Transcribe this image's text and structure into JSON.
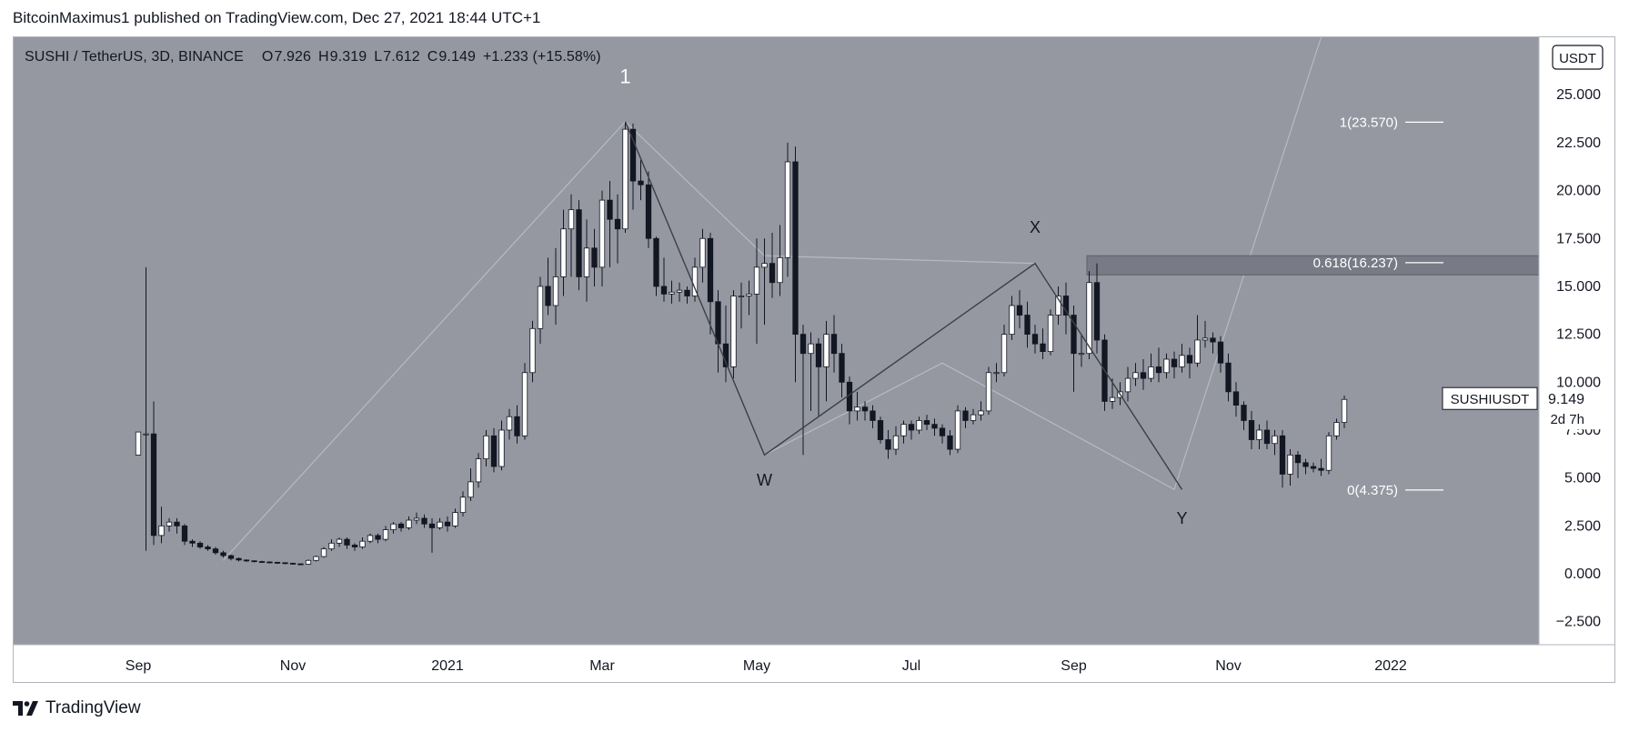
{
  "header": {
    "published_text": "BitcoinMaximus1 published on TradingView.com, Dec 27, 2021 18:44 UTC+1"
  },
  "legend": {
    "symbol": "SUSHI / TetherUS, 3D, BINANCE",
    "open_label": "O",
    "open": "7.926",
    "high_label": "H",
    "high": "9.319",
    "low_label": "L",
    "low": "7.612",
    "close_label": "C",
    "close": "9.149",
    "change": "+1.233 (+15.58%)"
  },
  "footer": {
    "brand": "TradingView",
    "logo_icon": "tradingview-logo-icon"
  },
  "colors": {
    "plot_bg": "#9598a1",
    "up_candle": "#ffffff",
    "down_candle": "#131722",
    "wave_line": "#3c3f47",
    "channel_line": "#b7bac1",
    "fib_box": "#787b86"
  },
  "chart_data": {
    "type": "candlestick",
    "currency_badge": "USDT",
    "ylim": [
      -3.7,
      28.0
    ],
    "y_ticks": [
      -2.5,
      0,
      2.5,
      5,
      7.5,
      10,
      12.5,
      15,
      17.5,
      20,
      22.5,
      25
    ],
    "y_tick_labels": [
      "−2.500",
      "0.000",
      "2.500",
      "5.000",
      "7.500",
      "10.000",
      "12.500",
      "15.000",
      "17.500",
      "20.000",
      "22.500",
      "25.000"
    ],
    "x_ticks": [
      {
        "label": "Sep",
        "i": 0
      },
      {
        "label": "Nov",
        "i": 20
      },
      {
        "label": "2021",
        "i": 40
      },
      {
        "label": "Mar",
        "i": 60
      },
      {
        "label": "May",
        "i": 80
      },
      {
        "label": "Jul",
        "i": 100
      },
      {
        "label": "Sep",
        "i": 121
      },
      {
        "label": "Nov",
        "i": 141
      },
      {
        "label": "2022",
        "i": 162
      }
    ],
    "last_price_label": {
      "symbol": "SUSHIUSDT",
      "price": "9.149",
      "countdown": "2d 7h"
    },
    "last_price": 9.149,
    "candles": [
      [
        6.2,
        7.4,
        7.4,
        6.2
      ],
      [
        7.3,
        7.3,
        16.0,
        1.2
      ],
      [
        7.3,
        2.0,
        9.0,
        1.5
      ],
      [
        2.0,
        2.5,
        3.5,
        1.6
      ],
      [
        2.5,
        2.7,
        2.9,
        2.2
      ],
      [
        2.7,
        2.5,
        2.9,
        2.1
      ],
      [
        2.5,
        1.7,
        2.6,
        1.5
      ],
      [
        1.7,
        1.6,
        1.8,
        1.4
      ],
      [
        1.6,
        1.4,
        1.7,
        1.3
      ],
      [
        1.4,
        1.3,
        1.5,
        1.2
      ],
      [
        1.3,
        1.1,
        1.4,
        1.0
      ],
      [
        1.1,
        0.95,
        1.2,
        0.85
      ],
      [
        0.95,
        0.8,
        1.0,
        0.7
      ],
      [
        0.8,
        0.72,
        0.85,
        0.65
      ],
      [
        0.72,
        0.68,
        0.75,
        0.62
      ],
      [
        0.68,
        0.64,
        0.7,
        0.6
      ],
      [
        0.64,
        0.62,
        0.68,
        0.58
      ],
      [
        0.62,
        0.6,
        0.65,
        0.55
      ],
      [
        0.6,
        0.58,
        0.63,
        0.52
      ],
      [
        0.58,
        0.55,
        0.6,
        0.5
      ],
      [
        0.55,
        0.52,
        0.58,
        0.48
      ],
      [
        0.52,
        0.5,
        0.55,
        0.45
      ],
      [
        0.5,
        0.7,
        0.75,
        0.47
      ],
      [
        0.7,
        0.9,
        0.95,
        0.65
      ],
      [
        0.9,
        1.3,
        1.4,
        0.85
      ],
      [
        1.3,
        1.6,
        1.8,
        1.2
      ],
      [
        1.6,
        1.8,
        1.9,
        1.4
      ],
      [
        1.8,
        1.5,
        1.9,
        1.3
      ],
      [
        1.5,
        1.4,
        1.6,
        1.2
      ],
      [
        1.4,
        1.7,
        1.9,
        1.3
      ],
      [
        1.7,
        2.0,
        2.1,
        1.6
      ],
      [
        2.0,
        1.8,
        2.1,
        1.6
      ],
      [
        1.8,
        2.3,
        2.5,
        1.7
      ],
      [
        2.3,
        2.6,
        2.7,
        2.1
      ],
      [
        2.6,
        2.4,
        2.7,
        2.2
      ],
      [
        2.4,
        2.8,
        3.0,
        2.3
      ],
      [
        2.8,
        2.9,
        3.2,
        2.6
      ],
      [
        2.9,
        2.6,
        3.1,
        2.4
      ],
      [
        2.6,
        2.4,
        2.9,
        1.1
      ],
      [
        2.4,
        2.7,
        2.9,
        2.3
      ],
      [
        2.7,
        2.5,
        3.0,
        2.2
      ],
      [
        2.5,
        3.2,
        3.4,
        2.4
      ],
      [
        3.2,
        4.0,
        4.3,
        3.0
      ],
      [
        4.0,
        4.8,
        5.5,
        3.8
      ],
      [
        4.8,
        6.0,
        6.3,
        4.5
      ],
      [
        6.0,
        7.2,
        7.5,
        5.6
      ],
      [
        7.2,
        5.6,
        7.6,
        5.3
      ],
      [
        5.6,
        7.5,
        8.0,
        5.4
      ],
      [
        7.5,
        8.2,
        8.6,
        7.0
      ],
      [
        8.2,
        7.2,
        8.8,
        6.8
      ],
      [
        7.2,
        10.5,
        11.0,
        7.0
      ],
      [
        10.5,
        12.8,
        13.2,
        10.0
      ],
      [
        12.8,
        15.0,
        15.5,
        12.0
      ],
      [
        15.0,
        14.0,
        16.5,
        13.5
      ],
      [
        14.0,
        15.5,
        17.0,
        13.0
      ],
      [
        15.5,
        18.0,
        19.0,
        14.5
      ],
      [
        18.0,
        19.0,
        19.8,
        15.5
      ],
      [
        19.0,
        15.5,
        19.5,
        14.8
      ],
      [
        15.5,
        17.0,
        18.5,
        14.2
      ],
      [
        17.0,
        16.0,
        18.0,
        15.0
      ],
      [
        16.0,
        19.5,
        20.0,
        15.0
      ],
      [
        19.5,
        18.5,
        20.5,
        16.0
      ],
      [
        18.5,
        18.0,
        19.8,
        16.2
      ],
      [
        18.0,
        23.2,
        23.6,
        17.8
      ],
      [
        23.2,
        20.5,
        23.5,
        19.0
      ],
      [
        20.5,
        20.3,
        21.6,
        19.5
      ],
      [
        20.3,
        17.5,
        21.0,
        17.0
      ],
      [
        17.5,
        15.0,
        17.6,
        14.5
      ],
      [
        15.0,
        14.6,
        16.5,
        14.2
      ],
      [
        14.6,
        14.7,
        15.3,
        14.1
      ],
      [
        14.7,
        14.8,
        15.2,
        14.2
      ],
      [
        14.8,
        14.5,
        15.0,
        14.1
      ],
      [
        14.5,
        16.0,
        16.5,
        14.2
      ],
      [
        16.0,
        17.5,
        18.0,
        15.2
      ],
      [
        17.5,
        14.2,
        17.8,
        12.5
      ],
      [
        14.2,
        12.0,
        14.8,
        10.5
      ],
      [
        12.0,
        10.8,
        14.0,
        10.0
      ],
      [
        10.8,
        14.5,
        14.8,
        10.2
      ],
      [
        14.5,
        14.5,
        15.2,
        12.8
      ],
      [
        14.5,
        14.6,
        15.3,
        13.5
      ],
      [
        14.6,
        16.0,
        17.5,
        12.0
      ],
      [
        16.0,
        16.2,
        17.5,
        13.0
      ],
      [
        16.2,
        15.2,
        17.8,
        14.4
      ],
      [
        15.2,
        16.5,
        18.2,
        14.5
      ],
      [
        16.5,
        21.5,
        22.5,
        15.5
      ],
      [
        21.5,
        12.5,
        22.3,
        10.0
      ],
      [
        12.5,
        11.5,
        13.0,
        6.2
      ],
      [
        11.5,
        12.0,
        12.6,
        8.5
      ],
      [
        12.0,
        10.8,
        12.3,
        8.2
      ],
      [
        10.8,
        12.5,
        13.2,
        9.0
      ],
      [
        12.5,
        11.5,
        13.5,
        10.5
      ],
      [
        11.5,
        10.0,
        12.0,
        9.2
      ],
      [
        10.0,
        8.5,
        10.3,
        7.8
      ],
      [
        8.5,
        8.7,
        9.5,
        8.0
      ],
      [
        8.7,
        8.5,
        9.0,
        8.0
      ],
      [
        8.5,
        8.0,
        8.8,
        7.6
      ],
      [
        8.0,
        7.0,
        8.2,
        6.8
      ],
      [
        7.0,
        6.5,
        7.5,
        6.0
      ],
      [
        6.5,
        7.2,
        7.7,
        6.2
      ],
      [
        7.2,
        7.8,
        8.0,
        6.8
      ],
      [
        7.8,
        7.5,
        8.0,
        7.0
      ],
      [
        7.5,
        8.0,
        8.2,
        7.3
      ],
      [
        8.0,
        7.8,
        8.3,
        7.5
      ],
      [
        7.8,
        7.6,
        8.1,
        7.2
      ],
      [
        7.6,
        7.2,
        7.8,
        6.8
      ],
      [
        7.2,
        6.5,
        7.5,
        6.2
      ],
      [
        6.5,
        8.5,
        8.8,
        6.3
      ],
      [
        8.5,
        8.0,
        8.7,
        7.6
      ],
      [
        8.0,
        8.3,
        8.6,
        7.8
      ],
      [
        8.3,
        8.5,
        9.0,
        8.0
      ],
      [
        8.5,
        10.5,
        10.8,
        8.3
      ],
      [
        10.5,
        10.5,
        11.0,
        10.0
      ],
      [
        10.5,
        12.5,
        13.0,
        10.3
      ],
      [
        12.5,
        14.0,
        14.5,
        12.2
      ],
      [
        14.0,
        13.5,
        14.8,
        12.8
      ],
      [
        13.5,
        12.5,
        14.2,
        11.8
      ],
      [
        12.5,
        12.0,
        13.0,
        11.5
      ],
      [
        12.0,
        11.6,
        12.8,
        11.2
      ],
      [
        11.6,
        13.5,
        13.8,
        11.4
      ],
      [
        13.5,
        14.5,
        15.0,
        13.0
      ],
      [
        14.5,
        13.5,
        15.2,
        12.5
      ],
      [
        13.5,
        11.5,
        14.0,
        9.5
      ],
      [
        11.5,
        11.5,
        12.5,
        10.8
      ],
      [
        11.5,
        15.2,
        15.8,
        11.2
      ],
      [
        15.2,
        12.2,
        16.2,
        11.5
      ],
      [
        12.2,
        9.0,
        12.5,
        8.5
      ],
      [
        9.0,
        9.2,
        10.2,
        8.6
      ],
      [
        9.2,
        9.5,
        10.0,
        8.8
      ],
      [
        9.5,
        10.2,
        10.8,
        9.0
      ],
      [
        10.2,
        10.5,
        11.0,
        9.8
      ],
      [
        10.5,
        10.2,
        11.2,
        9.6
      ],
      [
        10.2,
        10.8,
        11.5,
        10.0
      ],
      [
        10.8,
        10.5,
        11.8,
        10.0
      ],
      [
        10.5,
        11.2,
        11.5,
        10.2
      ],
      [
        11.2,
        10.8,
        11.6,
        10.2
      ],
      [
        10.8,
        11.4,
        12.0,
        10.5
      ],
      [
        11.4,
        11.0,
        11.8,
        10.2
      ],
      [
        11.0,
        12.2,
        13.5,
        10.8
      ],
      [
        12.2,
        12.3,
        13.2,
        11.8
      ],
      [
        12.3,
        12.1,
        12.6,
        11.5
      ],
      [
        12.1,
        11.0,
        12.4,
        10.5
      ],
      [
        11.0,
        9.5,
        11.5,
        9.0
      ],
      [
        9.5,
        8.8,
        10.0,
        8.2
      ],
      [
        8.8,
        8.0,
        9.0,
        7.5
      ],
      [
        8.0,
        7.0,
        8.5,
        6.5
      ],
      [
        7.0,
        7.5,
        7.8,
        6.5
      ],
      [
        7.5,
        6.8,
        8.0,
        6.5
      ],
      [
        6.8,
        7.2,
        7.5,
        6.2
      ],
      [
        7.2,
        5.2,
        7.5,
        4.5
      ],
      [
        5.2,
        6.2,
        6.5,
        4.6
      ],
      [
        6.2,
        5.8,
        6.4,
        5.0
      ],
      [
        5.8,
        5.6,
        6.0,
        5.2
      ],
      [
        5.6,
        5.5,
        5.8,
        5.3
      ],
      [
        5.5,
        5.4,
        6.0,
        5.1
      ],
      [
        5.4,
        7.2,
        7.4,
        5.2
      ],
      [
        7.2,
        7.9,
        8.1,
        7.0
      ],
      [
        7.9,
        9.1,
        9.3,
        7.6
      ]
    ],
    "wave_lines": [
      {
        "points": [
          [
            63,
            23.6
          ],
          [
            81,
            6.2
          ],
          [
            116,
            16.2
          ],
          [
            135,
            4.4
          ]
        ]
      }
    ],
    "channel_lines": [
      {
        "points": [
          [
            11,
            0.7
          ],
          [
            63,
            23.6
          ],
          [
            81,
            16.6
          ],
          [
            116,
            16.2
          ]
        ]
      },
      {
        "points": [
          [
            81,
            6.2
          ],
          [
            104,
            11.0
          ],
          [
            134,
            4.4
          ],
          [
            153,
            28.0
          ]
        ]
      }
    ],
    "fib": {
      "levels": [
        {
          "label": "1(23.570)",
          "value": 23.57
        },
        {
          "label": "0.618(16.237)",
          "value": 16.237
        },
        {
          "label": "0(4.375)",
          "value": 4.375
        }
      ],
      "zone": [
        15.6,
        16.6
      ]
    },
    "wave_labels": [
      {
        "text": "1",
        "i": 63,
        "y": 25.6
      },
      {
        "text": "W",
        "i": 81,
        "y": 4.6
      },
      {
        "text": "X",
        "i": 116,
        "y": 17.8
      },
      {
        "text": "Y",
        "i": 135,
        "y": 2.6
      }
    ]
  }
}
